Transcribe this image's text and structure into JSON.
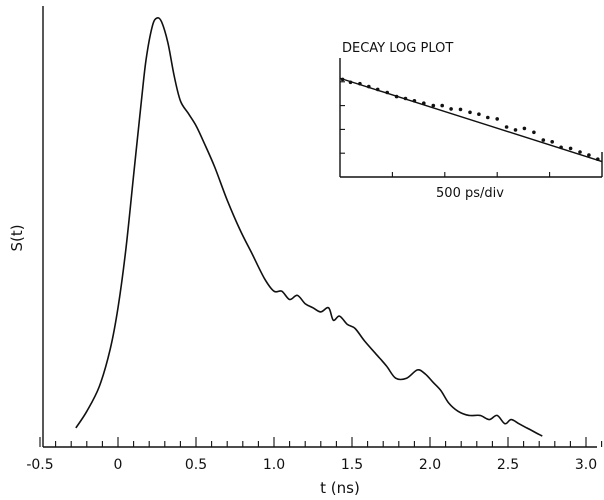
{
  "chart_data": [
    {
      "type": "line",
      "title": "",
      "xlabel": "t (ns)",
      "ylabel": "S(t)",
      "xlim": [
        -0.55,
        3.3
      ],
      "ylim": [
        0,
        1.0
      ],
      "grid": false,
      "xticks": [
        -0.5,
        0,
        0.5,
        1.0,
        1.5,
        2.0,
        2.5,
        3.0
      ],
      "xtick_labels": [
        "-0.5",
        "0",
        "0.5",
        "1.0",
        "1.5",
        "2.0",
        "2.5",
        "3.0"
      ],
      "series": [
        {
          "x": [
            -0.27,
            -0.2,
            -0.12,
            -0.05,
            0.0,
            0.05,
            0.1,
            0.15,
            0.18,
            0.22,
            0.25,
            0.28,
            0.32,
            0.36,
            0.4,
            0.45,
            0.5,
            0.55,
            0.62,
            0.7,
            0.78,
            0.86,
            0.94,
            1.0,
            1.05,
            1.1,
            1.15,
            1.2,
            1.25,
            1.3,
            1.35,
            1.38,
            1.42,
            1.47,
            1.52,
            1.58,
            1.65,
            1.72,
            1.78,
            1.85,
            1.92,
            1.97,
            2.02,
            2.07,
            2.12,
            2.18,
            2.25,
            2.32,
            2.38,
            2.43,
            2.48,
            2.52,
            2.57,
            2.62,
            2.67,
            2.72
          ],
          "values": [
            0.01,
            0.05,
            0.11,
            0.2,
            0.3,
            0.44,
            0.62,
            0.8,
            0.9,
            0.98,
            1.0,
            0.99,
            0.94,
            0.86,
            0.8,
            0.77,
            0.74,
            0.7,
            0.64,
            0.56,
            0.49,
            0.43,
            0.37,
            0.34,
            0.34,
            0.32,
            0.33,
            0.31,
            0.3,
            0.29,
            0.3,
            0.27,
            0.28,
            0.26,
            0.25,
            0.22,
            0.19,
            0.16,
            0.13,
            0.13,
            0.15,
            0.14,
            0.12,
            0.1,
            0.07,
            0.05,
            0.04,
            0.04,
            0.03,
            0.04,
            0.02,
            0.03,
            0.02,
            0.01,
            0.0,
            -0.01
          ]
        }
      ]
    },
    {
      "type": "scatter",
      "title": "DECAY LOG PLOT",
      "xlabel": "500 ps/div",
      "ylabel": "",
      "xlim": [
        0,
        5
      ],
      "ylim": [
        0,
        5
      ],
      "grid": false,
      "series": [
        {
          "x": [
            0.05,
            0.2,
            0.38,
            0.55,
            0.72,
            0.9,
            1.08,
            1.25,
            1.42,
            1.6,
            1.78,
            1.95,
            2.12,
            2.3,
            2.48,
            2.65,
            2.82,
            3.0,
            3.18,
            3.35,
            3.52,
            3.7,
            3.88,
            4.05,
            4.22,
            4.4,
            4.58,
            4.75,
            4.92
          ],
          "values": [
            4.1,
            3.98,
            3.92,
            3.8,
            3.68,
            3.55,
            3.38,
            3.3,
            3.2,
            3.1,
            3.0,
            3.0,
            2.86,
            2.84,
            2.72,
            2.64,
            2.5,
            2.44,
            2.1,
            1.98,
            2.04,
            1.88,
            1.55,
            1.48,
            1.25,
            1.2,
            1.05,
            0.92,
            0.75
          ]
        },
        {
          "x": [
            0,
            5
          ],
          "values": [
            4.15,
            0.65
          ]
        }
      ]
    }
  ]
}
